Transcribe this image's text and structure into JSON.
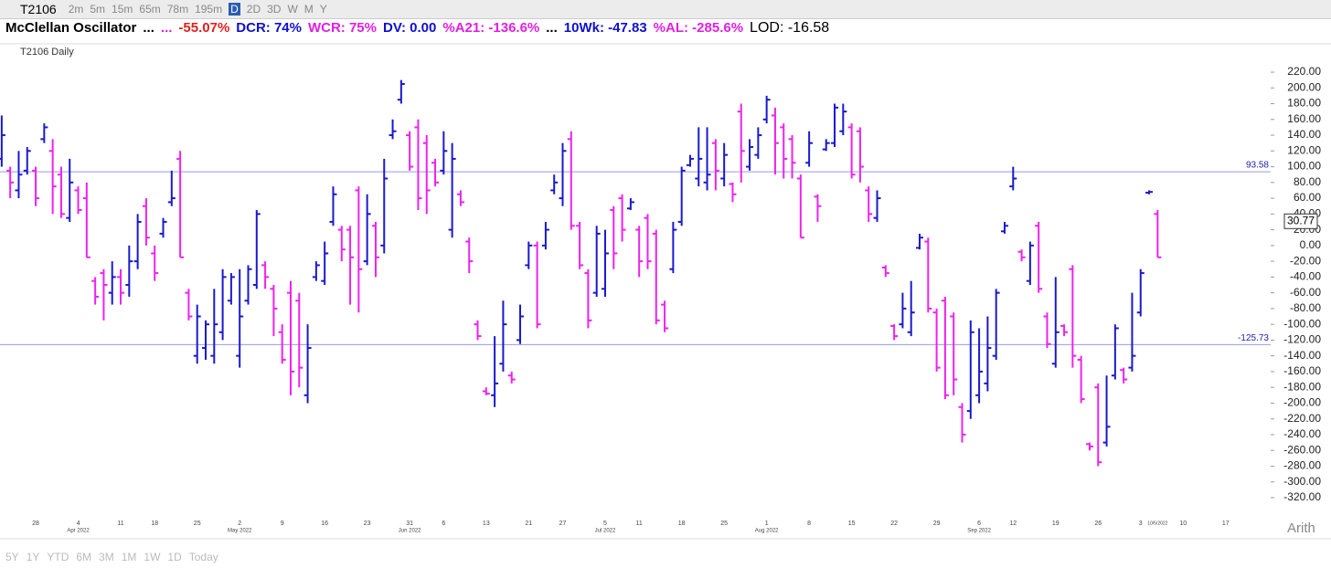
{
  "toolbar": {
    "symbol": "T2106",
    "timeframes": [
      "2m",
      "5m",
      "15m",
      "65m",
      "78m",
      "195m",
      "D",
      "2D",
      "3D",
      "W",
      "M",
      "Y"
    ],
    "active": "D"
  },
  "indicator_line": [
    {
      "text": "McClellan Oscillator",
      "color": "#000000"
    },
    {
      "text": "...",
      "color": "#000000"
    },
    {
      "text": "...",
      "color": "#e020e0"
    },
    {
      "text": "-55.07%",
      "color": "#e02020"
    },
    {
      "text": "DCR: 74%",
      "color": "#1010d0"
    },
    {
      "text": "WCR: 75%",
      "color": "#e020e0"
    },
    {
      "text": "DV: 0.00",
      "color": "#1010d0"
    },
    {
      "text": "%A21: -136.6%",
      "color": "#e020e0"
    },
    {
      "text": "...",
      "color": "#000000"
    },
    {
      "text": "10Wk: -47.83",
      "color": "#1010d0"
    },
    {
      "text": "%AL: -285.6%",
      "color": "#e020e0"
    },
    {
      "text": "LOD: -16.58",
      "color": "#000000"
    }
  ],
  "ranges": [
    "5Y",
    "1Y",
    "YTD",
    "6M",
    "3M",
    "1M",
    "1W",
    "1D",
    "Today"
  ],
  "scale_mode": "Arith",
  "chart_data": {
    "type": "ohlc",
    "title": "T2106 Daily",
    "up_color": "#1a1acc",
    "down_color": "#ee22ee",
    "xlim": [
      -0.2,
      149.3
    ],
    "ylim": [
      -330,
      235
    ],
    "xticks": [
      {
        "value": 4,
        "label": "28"
      },
      {
        "value": 9,
        "label": "4"
      },
      {
        "value": 14,
        "label": "11"
      },
      {
        "value": 18,
        "label": "18"
      },
      {
        "value": 23,
        "label": "25"
      },
      {
        "value": 28,
        "label": "2"
      },
      {
        "value": 33,
        "label": "9"
      },
      {
        "value": 38,
        "label": "16"
      },
      {
        "value": 43,
        "label": "23"
      },
      {
        "value": 48,
        "label": "31"
      },
      {
        "value": 52,
        "label": "6"
      },
      {
        "value": 57,
        "label": "13"
      },
      {
        "value": 62,
        "label": "21"
      },
      {
        "value": 66,
        "label": "27"
      },
      {
        "value": 71,
        "label": "5"
      },
      {
        "value": 75,
        "label": "11"
      },
      {
        "value": 80,
        "label": "18"
      },
      {
        "value": 85,
        "label": "25"
      },
      {
        "value": 90,
        "label": "1"
      },
      {
        "value": 95,
        "label": "8"
      },
      {
        "value": 100,
        "label": "15"
      },
      {
        "value": 105,
        "label": "22"
      },
      {
        "value": 110,
        "label": "29"
      },
      {
        "value": 115,
        "label": "6"
      },
      {
        "value": 119,
        "label": "12"
      },
      {
        "value": 124,
        "label": "19"
      },
      {
        "value": 129,
        "label": "26"
      },
      {
        "value": 134,
        "label": "3"
      },
      {
        "value": 136,
        "label": "10/5/2022"
      },
      {
        "value": 139,
        "label": "10"
      },
      {
        "value": 144,
        "label": "17"
      }
    ],
    "month_labels": [
      {
        "value": 9,
        "label": "Apr 2022"
      },
      {
        "value": 28,
        "label": "May 2022"
      },
      {
        "value": 48,
        "label": "Jun 2022"
      },
      {
        "value": 71,
        "label": "Jul 2022"
      },
      {
        "value": 90,
        "label": "Aug 2022"
      },
      {
        "value": 115,
        "label": "Sep 2022"
      }
    ],
    "yticks": [
      {
        "value": 220,
        "label": "220.00"
      },
      {
        "value": 200,
        "label": "200.00"
      },
      {
        "value": 180,
        "label": "180.00"
      },
      {
        "value": 160,
        "label": "160.00"
      },
      {
        "value": 140,
        "label": "140.00"
      },
      {
        "value": 120,
        "label": "120.00"
      },
      {
        "value": 100,
        "label": "100.00"
      },
      {
        "value": 80,
        "label": "80.00"
      },
      {
        "value": 60,
        "label": "60.00"
      },
      {
        "value": 40,
        "label": "40.00"
      },
      {
        "value": 20,
        "label": "20.00"
      },
      {
        "value": 0,
        "label": "0.00"
      },
      {
        "value": -20,
        "label": "-20.00"
      },
      {
        "value": -40,
        "label": "-40.00"
      },
      {
        "value": -60,
        "label": "-60.00"
      },
      {
        "value": -80,
        "label": "-80.00"
      },
      {
        "value": -100,
        "label": "-100.00"
      },
      {
        "value": -120,
        "label": "-120.00"
      },
      {
        "value": -140,
        "label": "-140.00"
      },
      {
        "value": -160,
        "label": "-160.00"
      },
      {
        "value": -180,
        "label": "-180.00"
      },
      {
        "value": -200,
        "label": "-200.00"
      },
      {
        "value": -220,
        "label": "-220.00"
      },
      {
        "value": -240,
        "label": "-240.00"
      },
      {
        "value": -260,
        "label": "-260.00"
      },
      {
        "value": -280,
        "label": "-280.00"
      },
      {
        "value": -300,
        "label": "-300.00"
      },
      {
        "value": -320,
        "label": "-320.00"
      }
    ],
    "hlines": [
      93.58,
      -125.73
    ],
    "hline_color": "#9999ee",
    "last_value": 30.77,
    "bars": [
      [
        110,
        165,
        100,
        140
      ],
      [
        95,
        100,
        60,
        80
      ],
      [
        70,
        120,
        60,
        90
      ],
      [
        95,
        125,
        90,
        120
      ],
      [
        95,
        100,
        50,
        60
      ],
      [
        135,
        155,
        130,
        150
      ],
      [
        120,
        135,
        40,
        75
      ],
      [
        90,
        100,
        35,
        40
      ],
      [
        35,
        110,
        30,
        80
      ],
      [
        70,
        75,
        40,
        45
      ],
      [
        60,
        80,
        -15,
        -15
      ],
      [
        -45,
        -40,
        -75,
        -65
      ],
      [
        -35,
        -30,
        -95,
        -50
      ],
      [
        -60,
        -20,
        -75,
        -40
      ],
      [
        -40,
        -30,
        -75,
        -60
      ],
      [
        -50,
        0,
        -65,
        -20
      ],
      [
        -20,
        40,
        -30,
        30
      ],
      [
        50,
        60,
        0,
        10
      ],
      [
        -10,
        0,
        -45,
        -35
      ],
      [
        15,
        35,
        10,
        30
      ],
      [
        55,
        95,
        50,
        60
      ],
      [
        110,
        120,
        -15,
        -15
      ],
      [
        -60,
        -55,
        -95,
        -90
      ],
      [
        -140,
        -75,
        -150,
        -90
      ],
      [
        -130,
        -95,
        -145,
        -100
      ],
      [
        -140,
        -55,
        -150,
        -100
      ],
      [
        -110,
        -30,
        -120,
        -40
      ],
      [
        -70,
        -35,
        -75,
        -40
      ],
      [
        -140,
        -30,
        -155,
        -90
      ],
      [
        -70,
        -25,
        -75,
        -30
      ],
      [
        -50,
        45,
        -55,
        40
      ],
      [
        -25,
        -20,
        -55,
        -40
      ],
      [
        -55,
        -50,
        -115,
        -80
      ],
      [
        -110,
        -100,
        -150,
        -145
      ],
      [
        -60,
        -45,
        -190,
        -160
      ],
      [
        -70,
        -60,
        -180,
        -155
      ],
      [
        -190,
        -100,
        -200,
        -130
      ],
      [
        -40,
        -20,
        -45,
        -25
      ],
      [
        -45,
        5,
        -50,
        -10
      ],
      [
        30,
        75,
        25,
        65
      ],
      [
        20,
        25,
        -20,
        -5
      ],
      [
        20,
        25,
        -75,
        -15
      ],
      [
        70,
        75,
        -85,
        -30
      ],
      [
        -20,
        65,
        -25,
        40
      ],
      [
        25,
        30,
        -40,
        -15
      ],
      [
        0,
        110,
        -10,
        85
      ],
      [
        140,
        160,
        135,
        145
      ],
      [
        185,
        210,
        180,
        205
      ],
      [
        140,
        145,
        95,
        100
      ],
      [
        150,
        160,
        45,
        60
      ],
      [
        130,
        140,
        40,
        70
      ],
      [
        105,
        110,
        75,
        80
      ],
      [
        95,
        145,
        90,
        120
      ],
      [
        20,
        130,
        10,
        110
      ],
      [
        65,
        70,
        50,
        55
      ],
      [
        5,
        10,
        -35,
        -20
      ],
      [
        -100,
        -95,
        -120,
        -115
      ],
      [
        -185,
        -180,
        -190,
        -188
      ],
      [
        -190,
        -115,
        -205,
        -175
      ],
      [
        -150,
        -70,
        -160,
        -100
      ],
      [
        -165,
        -160,
        -175,
        -170
      ],
      [
        -120,
        -75,
        -125,
        -90
      ],
      [
        -25,
        5,
        -30,
        0
      ],
      [
        0,
        5,
        -105,
        -100
      ],
      [
        0,
        30,
        -5,
        20
      ],
      [
        70,
        90,
        65,
        80
      ],
      [
        60,
        130,
        50,
        120
      ],
      [
        135,
        145,
        20,
        25
      ],
      [
        25,
        30,
        -30,
        -25
      ],
      [
        -35,
        -30,
        -105,
        -95
      ],
      [
        -60,
        25,
        -65,
        15
      ],
      [
        -55,
        20,
        -65,
        -10
      ],
      [
        45,
        50,
        -30,
        -10
      ],
      [
        60,
        65,
        5,
        20
      ],
      [
        47,
        60,
        45,
        55
      ],
      [
        20,
        25,
        -40,
        -20
      ],
      [
        35,
        40,
        -30,
        -20
      ],
      [
        15,
        20,
        -100,
        -95
      ],
      [
        -75,
        -70,
        -110,
        -105
      ],
      [
        -30,
        30,
        -35,
        20
      ],
      [
        30,
        100,
        25,
        95
      ],
      [
        102,
        115,
        100,
        110
      ],
      [
        85,
        150,
        75,
        110
      ],
      [
        80,
        150,
        70,
        90
      ],
      [
        130,
        135,
        70,
        95
      ],
      [
        85,
        130,
        75,
        115
      ],
      [
        78,
        80,
        55,
        65
      ],
      [
        170,
        180,
        80,
        120
      ],
      [
        100,
        135,
        95,
        125
      ],
      [
        115,
        150,
        110,
        140
      ],
      [
        160,
        190,
        155,
        185
      ],
      [
        165,
        175,
        90,
        130
      ],
      [
        150,
        155,
        85,
        110
      ],
      [
        135,
        140,
        85,
        105
      ],
      [
        85,
        90,
        10,
        10
      ],
      [
        105,
        145,
        100,
        130
      ],
      [
        62,
        65,
        30,
        50
      ],
      [
        122,
        135,
        120,
        130
      ],
      [
        130,
        180,
        125,
        175
      ],
      [
        145,
        180,
        140,
        170
      ],
      [
        150,
        155,
        85,
        90
      ],
      [
        145,
        150,
        80,
        100
      ],
      [
        70,
        75,
        30,
        40
      ],
      [
        35,
        70,
        30,
        60
      ],
      [
        -28,
        -25,
        -40,
        -35
      ],
      [
        -102,
        -100,
        -120,
        -115
      ],
      [
        -100,
        -60,
        -105,
        -80
      ],
      [
        -110,
        -45,
        -115,
        -85
      ],
      [
        -3,
        15,
        -5,
        10
      ],
      [
        5,
        10,
        -85,
        -80
      ],
      [
        -85,
        -80,
        -160,
        -155
      ],
      [
        -70,
        -65,
        -195,
        -190
      ],
      [
        -90,
        -85,
        -190,
        -170
      ],
      [
        -205,
        -200,
        -250,
        -240
      ],
      [
        -210,
        -95,
        -220,
        -110
      ],
      [
        -190,
        -105,
        -200,
        -160
      ],
      [
        -175,
        -90,
        -185,
        -130
      ],
      [
        -140,
        -55,
        -145,
        -60
      ],
      [
        18,
        30,
        15,
        25
      ],
      [
        75,
        100,
        70,
        85
      ],
      [
        -8,
        -5,
        -20,
        -15
      ],
      [
        -45,
        5,
        -50,
        0
      ],
      [
        25,
        30,
        -60,
        -55
      ],
      [
        -90,
        -85,
        -130,
        -125
      ],
      [
        -150,
        -40,
        -155,
        -110
      ],
      [
        -102,
        -100,
        -115,
        -110
      ],
      [
        -30,
        -25,
        -155,
        -140
      ],
      [
        -145,
        -140,
        -200,
        -195
      ],
      [
        -252,
        -250,
        -260,
        -255
      ],
      [
        -180,
        -175,
        -280,
        -275
      ],
      [
        -250,
        -165,
        -255,
        -230
      ],
      [
        -165,
        -100,
        -170,
        -105
      ],
      [
        -158,
        -155,
        -175,
        -170
      ],
      [
        -155,
        -60,
        -160,
        -140
      ],
      [
        -85,
        -30,
        -90,
        -35
      ],
      [
        67,
        70,
        65,
        68
      ],
      [
        40,
        45,
        -15,
        -15
      ]
    ]
  }
}
